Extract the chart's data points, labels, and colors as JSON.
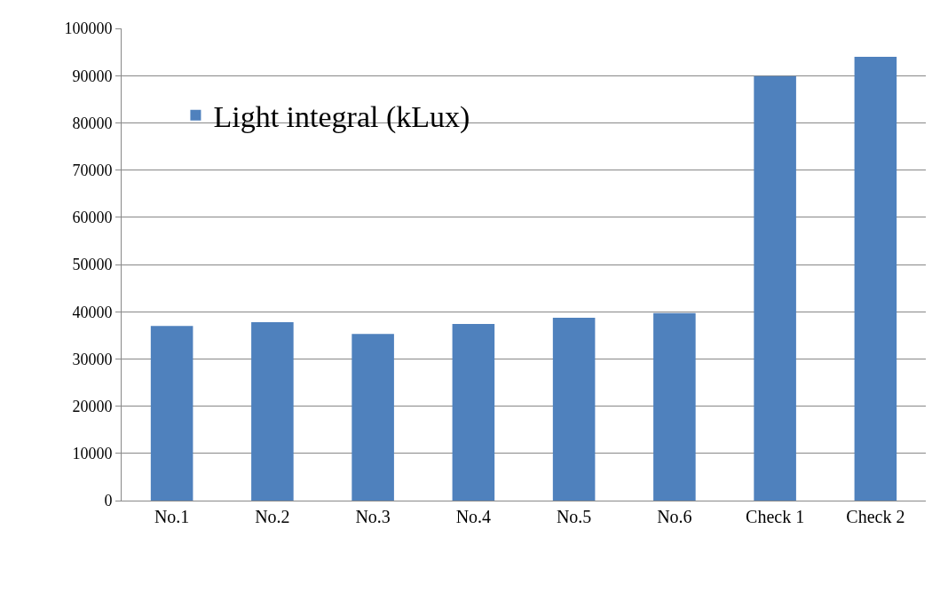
{
  "chart_data": {
    "type": "bar",
    "categories": [
      "No.1",
      "No.2",
      "No.3",
      "No.4",
      "No.5",
      "No.6",
      "Check 1",
      "Check 2"
    ],
    "series": [
      {
        "name": "Light integral (kLux)",
        "color": "#4f81bd",
        "values": [
          37000,
          37800,
          35300,
          37400,
          38700,
          39700,
          89900,
          94000
        ]
      }
    ],
    "ylim": [
      0,
      100000
    ],
    "yticks": [
      0,
      10000,
      20000,
      30000,
      40000,
      50000,
      60000,
      70000,
      80000,
      90000,
      100000
    ],
    "grid": "y",
    "legend": "top left"
  }
}
